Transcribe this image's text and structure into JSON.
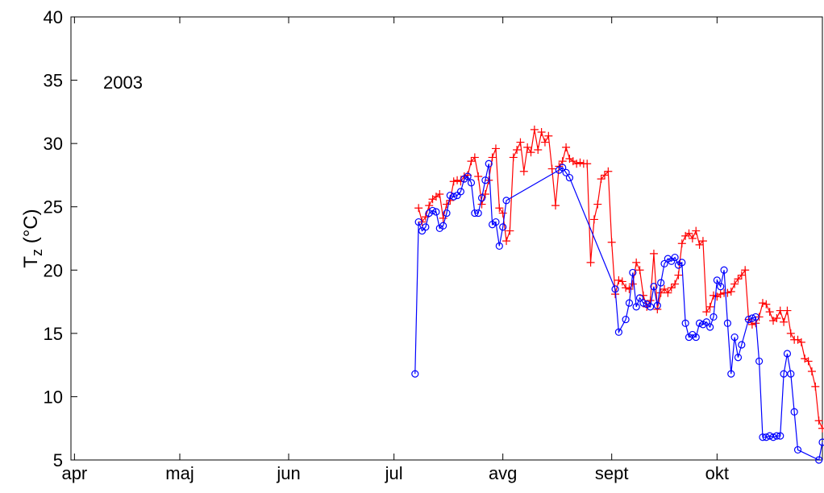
{
  "chart_data": {
    "type": "line",
    "title": "",
    "annotation": "2003",
    "ylabel": {
      "main": "T",
      "sub": "z",
      "unit": " (°C)"
    },
    "ylim": [
      5,
      40
    ],
    "yticks": [
      5,
      10,
      15,
      20,
      25,
      30,
      35,
      40
    ],
    "xlim": [
      "2003-03-31",
      "2003-10-31"
    ],
    "xticks": [
      {
        "date": "2003-04-01",
        "label": "apr"
      },
      {
        "date": "2003-05-01",
        "label": "maj"
      },
      {
        "date": "2003-06-01",
        "label": "jun"
      },
      {
        "date": "2003-07-01",
        "label": "jul"
      },
      {
        "date": "2003-08-01",
        "label": "avg"
      },
      {
        "date": "2003-09-01",
        "label": "sept"
      },
      {
        "date": "2003-10-01",
        "label": "okt"
      }
    ],
    "colors": {
      "red_series": "#ff0000",
      "blue_series": "#0000ff"
    },
    "series": [
      {
        "color": "#ff0000",
        "marker": "plus",
        "points": [
          [
            "2003-07-08",
            24.9
          ],
          [
            "2003-07-09",
            23.8
          ],
          [
            "2003-07-10",
            24.2
          ],
          [
            "2003-07-11",
            25.1
          ],
          [
            "2003-07-12",
            25.6
          ],
          [
            "2003-07-13",
            25.8
          ],
          [
            "2003-07-14",
            26.0
          ],
          [
            "2003-07-15",
            24.1
          ],
          [
            "2003-07-16",
            25.2
          ],
          [
            "2003-07-17",
            25.5
          ],
          [
            "2003-07-18",
            27.0
          ],
          [
            "2003-07-19",
            27.1
          ],
          [
            "2003-07-20",
            27.0
          ],
          [
            "2003-07-21",
            27.4
          ],
          [
            "2003-07-22",
            27.5
          ],
          [
            "2003-07-23",
            28.6
          ],
          [
            "2003-07-24",
            28.9
          ],
          [
            "2003-07-25",
            27.4
          ],
          [
            "2003-07-26",
            25.2
          ],
          [
            "2003-07-27",
            26.0
          ],
          [
            "2003-07-28",
            27.1
          ],
          [
            "2003-07-29",
            28.9
          ],
          [
            "2003-07-30",
            29.6
          ],
          [
            "2003-07-31",
            24.9
          ],
          [
            "2003-08-01",
            24.5
          ],
          [
            "2003-08-02",
            22.3
          ],
          [
            "2003-08-03",
            23.1
          ],
          [
            "2003-08-04",
            28.9
          ],
          [
            "2003-08-05",
            29.5
          ],
          [
            "2003-08-06",
            30.1
          ],
          [
            "2003-08-07",
            27.8
          ],
          [
            "2003-08-08",
            29.7
          ],
          [
            "2003-08-09",
            29.3
          ],
          [
            "2003-08-10",
            31.1
          ],
          [
            "2003-08-11",
            29.5
          ],
          [
            "2003-08-12",
            30.9
          ],
          [
            "2003-08-13",
            30.1
          ],
          [
            "2003-08-14",
            30.6
          ],
          [
            "2003-08-15",
            28.0
          ],
          [
            "2003-08-16",
            25.1
          ],
          [
            "2003-08-17",
            28.2
          ],
          [
            "2003-08-18",
            28.6
          ],
          [
            "2003-08-19",
            29.7
          ],
          [
            "2003-08-20",
            28.8
          ],
          [
            "2003-08-21",
            28.6
          ],
          [
            "2003-08-22",
            28.4
          ],
          [
            "2003-08-23",
            28.5
          ],
          [
            "2003-08-24",
            28.4
          ],
          [
            "2003-08-25",
            28.4
          ],
          [
            "2003-08-26",
            20.6
          ],
          [
            "2003-08-27",
            24.0
          ],
          [
            "2003-08-28",
            25.2
          ],
          [
            "2003-08-29",
            27.2
          ],
          [
            "2003-08-30",
            27.5
          ],
          [
            "2003-08-31",
            27.8
          ],
          [
            "2003-09-01",
            22.2
          ],
          [
            "2003-09-02",
            18.1
          ],
          [
            "2003-09-03",
            19.2
          ],
          [
            "2003-09-04",
            19.1
          ],
          [
            "2003-09-05",
            18.6
          ],
          [
            "2003-09-06",
            18.5
          ],
          [
            "2003-09-07",
            18.9
          ],
          [
            "2003-09-08",
            20.6
          ],
          [
            "2003-09-09",
            20.0
          ],
          [
            "2003-09-10",
            18.0
          ],
          [
            "2003-09-11",
            17.1
          ],
          [
            "2003-09-12",
            17.6
          ],
          [
            "2003-09-13",
            21.3
          ],
          [
            "2003-09-14",
            16.9
          ],
          [
            "2003-09-15",
            18.2
          ],
          [
            "2003-09-16",
            18.5
          ],
          [
            "2003-09-17",
            18.2
          ],
          [
            "2003-09-18",
            18.6
          ],
          [
            "2003-09-19",
            18.9
          ],
          [
            "2003-09-20",
            19.6
          ],
          [
            "2003-09-21",
            22.1
          ],
          [
            "2003-09-22",
            22.7
          ],
          [
            "2003-09-23",
            22.9
          ],
          [
            "2003-09-24",
            22.5
          ],
          [
            "2003-09-25",
            23.1
          ],
          [
            "2003-09-26",
            22.0
          ],
          [
            "2003-09-27",
            22.3
          ],
          [
            "2003-09-28",
            16.7
          ],
          [
            "2003-09-29",
            17.1
          ],
          [
            "2003-09-30",
            18.0
          ],
          [
            "2003-10-01",
            17.9
          ],
          [
            "2003-10-02",
            18.1
          ],
          [
            "2003-10-03",
            18.2
          ],
          [
            "2003-10-04",
            18.2
          ],
          [
            "2003-10-05",
            18.3
          ],
          [
            "2003-10-06",
            18.9
          ],
          [
            "2003-10-07",
            19.3
          ],
          [
            "2003-10-08",
            19.6
          ],
          [
            "2003-10-09",
            20.0
          ],
          [
            "2003-10-10",
            16.1
          ],
          [
            "2003-10-11",
            15.7
          ],
          [
            "2003-10-12",
            15.8
          ],
          [
            "2003-10-13",
            16.3
          ],
          [
            "2003-10-14",
            17.4
          ],
          [
            "2003-10-15",
            17.3
          ],
          [
            "2003-10-16",
            16.7
          ],
          [
            "2003-10-17",
            16.0
          ],
          [
            "2003-10-18",
            16.2
          ],
          [
            "2003-10-19",
            16.8
          ],
          [
            "2003-10-20",
            15.9
          ],
          [
            "2003-10-21",
            16.8
          ],
          [
            "2003-10-22",
            15.0
          ],
          [
            "2003-10-23",
            14.5
          ],
          [
            "2003-10-24",
            14.5
          ],
          [
            "2003-10-25",
            14.3
          ],
          [
            "2003-10-26",
            13.0
          ],
          [
            "2003-10-27",
            12.8
          ],
          [
            "2003-10-28",
            12.0
          ],
          [
            "2003-10-29",
            10.8
          ],
          [
            "2003-10-30",
            8.1
          ],
          [
            "2003-10-31",
            7.5
          ]
        ]
      },
      {
        "color": "#0000ff",
        "marker": "circle",
        "points": [
          [
            "2003-07-07",
            11.8
          ],
          [
            "2003-07-08",
            23.8
          ],
          [
            "2003-07-09",
            23.1
          ],
          [
            "2003-07-10",
            23.4
          ],
          [
            "2003-07-11",
            24.5
          ],
          [
            "2003-07-12",
            24.7
          ],
          [
            "2003-07-13",
            24.6
          ],
          [
            "2003-07-14",
            23.3
          ],
          [
            "2003-07-15",
            23.5
          ],
          [
            "2003-07-16",
            24.5
          ],
          [
            "2003-07-17",
            25.9
          ],
          [
            "2003-07-18",
            25.8
          ],
          [
            "2003-07-19",
            25.9
          ],
          [
            "2003-07-20",
            26.2
          ],
          [
            "2003-07-21",
            27.2
          ],
          [
            "2003-07-22",
            27.4
          ],
          [
            "2003-07-23",
            26.9
          ],
          [
            "2003-07-24",
            24.5
          ],
          [
            "2003-07-25",
            24.5
          ],
          [
            "2003-07-26",
            25.7
          ],
          [
            "2003-07-27",
            27.1
          ],
          [
            "2003-07-28",
            28.4
          ],
          [
            "2003-07-29",
            23.6
          ],
          [
            "2003-07-30",
            23.8
          ],
          [
            "2003-07-31",
            21.9
          ],
          [
            "2003-08-01",
            23.4
          ],
          [
            "2003-08-02",
            25.5
          ],
          [
            "2003-08-17",
            27.9
          ],
          [
            "2003-08-18",
            28.1
          ],
          [
            "2003-08-19",
            27.7
          ],
          [
            "2003-08-20",
            27.3
          ],
          [
            "2003-09-02",
            18.5
          ],
          [
            "2003-09-03",
            15.1
          ],
          [
            "2003-09-05",
            16.1
          ],
          [
            "2003-09-06",
            17.4
          ],
          [
            "2003-09-07",
            19.8
          ],
          [
            "2003-09-08",
            17.1
          ],
          [
            "2003-09-09",
            17.8
          ],
          [
            "2003-09-10",
            17.4
          ],
          [
            "2003-09-11",
            17.3
          ],
          [
            "2003-09-12",
            17.1
          ],
          [
            "2003-09-13",
            18.7
          ],
          [
            "2003-09-14",
            17.2
          ],
          [
            "2003-09-15",
            19.0
          ],
          [
            "2003-09-16",
            20.5
          ],
          [
            "2003-09-17",
            20.9
          ],
          [
            "2003-09-18",
            20.7
          ],
          [
            "2003-09-19",
            21.0
          ],
          [
            "2003-09-20",
            20.4
          ],
          [
            "2003-09-21",
            20.6
          ],
          [
            "2003-09-22",
            15.8
          ],
          [
            "2003-09-23",
            14.7
          ],
          [
            "2003-09-24",
            14.9
          ],
          [
            "2003-09-25",
            14.7
          ],
          [
            "2003-09-26",
            15.8
          ],
          [
            "2003-09-27",
            15.7
          ],
          [
            "2003-09-28",
            15.9
          ],
          [
            "2003-09-29",
            15.5
          ],
          [
            "2003-09-30",
            16.3
          ],
          [
            "2003-10-01",
            19.2
          ],
          [
            "2003-10-02",
            18.7
          ],
          [
            "2003-10-03",
            20.0
          ],
          [
            "2003-10-04",
            15.8
          ],
          [
            "2003-10-05",
            11.8
          ],
          [
            "2003-10-06",
            14.7
          ],
          [
            "2003-10-07",
            13.1
          ],
          [
            "2003-10-08",
            14.1
          ],
          [
            "2003-10-10",
            16.1
          ],
          [
            "2003-10-11",
            16.2
          ],
          [
            "2003-10-12",
            16.3
          ],
          [
            "2003-10-13",
            12.8
          ],
          [
            "2003-10-14",
            6.8
          ],
          [
            "2003-10-15",
            6.8
          ],
          [
            "2003-10-16",
            6.9
          ],
          [
            "2003-10-17",
            6.8
          ],
          [
            "2003-10-18",
            6.9
          ],
          [
            "2003-10-19",
            6.9
          ],
          [
            "2003-10-20",
            11.8
          ],
          [
            "2003-10-21",
            13.4
          ],
          [
            "2003-10-22",
            11.8
          ],
          [
            "2003-10-23",
            8.8
          ],
          [
            "2003-10-24",
            5.8
          ],
          [
            "2003-10-30",
            5.0
          ],
          [
            "2003-10-31",
            6.4
          ]
        ]
      }
    ]
  }
}
